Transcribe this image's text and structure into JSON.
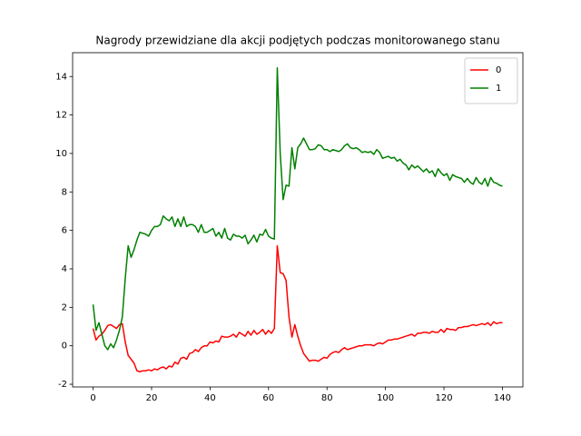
{
  "chart_data": {
    "type": "line",
    "title": "Nagrody przewidziane dla akcji podjętych podczas monitorowanego stanu",
    "x": [
      0,
      1,
      2,
      3,
      4,
      5,
      6,
      7,
      8,
      9,
      10,
      11,
      12,
      13,
      14,
      15,
      16,
      17,
      18,
      19,
      20,
      21,
      22,
      23,
      24,
      25,
      26,
      27,
      28,
      29,
      30,
      31,
      32,
      33,
      34,
      35,
      36,
      37,
      38,
      39,
      40,
      41,
      42,
      43,
      44,
      45,
      46,
      47,
      48,
      49,
      50,
      51,
      52,
      53,
      54,
      55,
      56,
      57,
      58,
      59,
      60,
      61,
      62,
      63,
      64,
      65,
      66,
      67,
      68,
      69,
      70,
      71,
      72,
      73,
      74,
      75,
      76,
      77,
      78,
      79,
      80,
      81,
      82,
      83,
      84,
      85,
      86,
      87,
      88,
      89,
      90,
      91,
      92,
      93,
      94,
      95,
      96,
      97,
      98,
      99,
      100,
      101,
      102,
      103,
      104,
      105,
      106,
      107,
      108,
      109,
      110,
      111,
      112,
      113,
      114,
      115,
      116,
      117,
      118,
      119,
      120,
      121,
      122,
      123,
      124,
      125,
      126,
      127,
      128,
      129,
      130,
      131,
      132,
      133,
      134,
      135,
      136,
      137,
      138,
      139,
      140
    ],
    "series": [
      {
        "name": "0",
        "color": "#ff0000",
        "values": [
          0.9,
          0.3,
          0.5,
          0.6,
          0.8,
          1.05,
          1.1,
          1.0,
          0.9,
          1.1,
          1.15,
          0.2,
          -0.5,
          -0.7,
          -0.9,
          -1.3,
          -1.35,
          -1.3,
          -1.3,
          -1.25,
          -1.3,
          -1.2,
          -1.25,
          -1.15,
          -1.1,
          -1.2,
          -1.05,
          -1.1,
          -0.85,
          -0.95,
          -0.65,
          -0.6,
          -0.7,
          -0.4,
          -0.35,
          -0.2,
          -0.3,
          -0.1,
          0.0,
          0.0,
          0.2,
          0.15,
          0.25,
          0.2,
          0.5,
          0.45,
          0.45,
          0.5,
          0.6,
          0.45,
          0.7,
          0.6,
          0.5,
          0.75,
          0.55,
          0.8,
          0.6,
          0.7,
          0.85,
          0.6,
          0.8,
          0.65,
          0.9,
          5.2,
          3.8,
          3.75,
          3.4,
          1.5,
          0.45,
          1.1,
          0.5,
          0.0,
          -0.4,
          -0.6,
          -0.8,
          -0.75,
          -0.75,
          -0.8,
          -0.7,
          -0.6,
          -0.65,
          -0.45,
          -0.35,
          -0.3,
          -0.35,
          -0.2,
          -0.1,
          -0.2,
          -0.15,
          -0.1,
          -0.05,
          0.0,
          0.0,
          0.05,
          0.05,
          0.05,
          0.0,
          0.1,
          0.15,
          0.1,
          0.2,
          0.3,
          0.3,
          0.35,
          0.35,
          0.4,
          0.45,
          0.5,
          0.55,
          0.6,
          0.5,
          0.65,
          0.65,
          0.7,
          0.7,
          0.65,
          0.75,
          0.7,
          0.7,
          0.85,
          0.7,
          0.9,
          0.85,
          0.85,
          0.8,
          0.95,
          0.95,
          1.0,
          1.0,
          1.05,
          1.1,
          1.05,
          1.1,
          1.15,
          1.1,
          1.2,
          1.05,
          1.25,
          1.15,
          1.2,
          1.2
        ]
      },
      {
        "name": "1",
        "color": "#008000",
        "values": [
          2.15,
          0.8,
          1.2,
          0.6,
          0.0,
          -0.2,
          0.1,
          -0.1,
          0.3,
          0.8,
          1.5,
          3.5,
          5.2,
          4.6,
          5.0,
          5.5,
          5.9,
          5.85,
          5.8,
          5.7,
          6.0,
          6.2,
          6.2,
          6.3,
          6.75,
          6.6,
          6.5,
          6.7,
          6.2,
          6.6,
          6.2,
          6.7,
          6.2,
          6.3,
          6.3,
          6.2,
          5.9,
          6.3,
          5.9,
          5.9,
          6.0,
          6.1,
          5.7,
          5.9,
          5.6,
          6.1,
          5.6,
          5.5,
          5.8,
          5.7,
          5.7,
          5.6,
          5.75,
          5.3,
          5.5,
          5.75,
          5.4,
          5.8,
          5.75,
          6.05,
          5.7,
          5.6,
          5.55,
          14.45,
          10.0,
          7.6,
          8.35,
          8.3,
          10.3,
          9.2,
          10.3,
          10.5,
          10.8,
          10.5,
          10.2,
          10.2,
          10.25,
          10.45,
          10.4,
          10.2,
          10.2,
          10.1,
          10.2,
          10.15,
          10.1,
          10.2,
          10.4,
          10.5,
          10.3,
          10.25,
          10.3,
          10.2,
          10.05,
          10.1,
          10.05,
          10.1,
          9.95,
          10.2,
          10.05,
          9.75,
          9.8,
          9.85,
          9.75,
          9.8,
          9.6,
          9.7,
          9.5,
          9.4,
          9.15,
          9.4,
          9.25,
          9.35,
          9.2,
          9.05,
          9.2,
          9.0,
          9.1,
          8.8,
          9.2,
          9.0,
          8.85,
          8.95,
          8.6,
          8.9,
          8.8,
          8.75,
          8.7,
          8.5,
          8.7,
          8.5,
          8.4,
          8.75,
          8.5,
          8.4,
          8.7,
          8.3,
          8.75,
          8.5,
          8.45,
          8.35,
          8.3
        ]
      }
    ],
    "xlim": [
      -7,
      147
    ],
    "xticks": [
      0,
      20,
      40,
      60,
      80,
      100,
      120,
      140
    ],
    "ylim": [
      -2.14,
      15.24
    ],
    "yticks": [
      -2,
      0,
      2,
      4,
      6,
      8,
      10,
      12,
      14
    ],
    "legend": "upper right"
  }
}
